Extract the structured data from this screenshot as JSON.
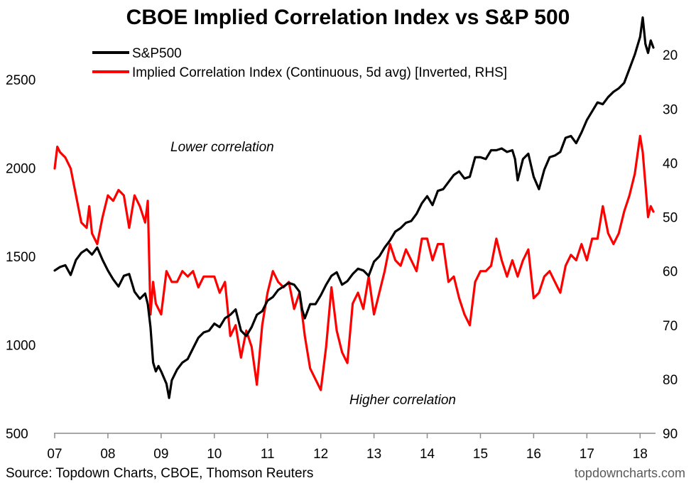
{
  "chart_data": {
    "type": "line",
    "title": "CBOE Implied Correlation Index vs S&P 500",
    "source": "Source: Topdown Charts, CBOE, Thomson Reuters",
    "brand": "topdowncharts.com",
    "annotations": {
      "top": "Lower correlation",
      "bottom": "Higher correlation"
    },
    "x_ticks": [
      "07",
      "08",
      "09",
      "10",
      "11",
      "12",
      "13",
      "14",
      "15",
      "16",
      "17",
      "18"
    ],
    "x_range": [
      2007.0,
      2018.25
    ],
    "y_left": {
      "ticks": [
        500,
        1000,
        1500,
        2000,
        2500
      ],
      "range": [
        500,
        2700
      ]
    },
    "y_right": {
      "ticks": [
        20,
        30,
        40,
        50,
        60,
        70,
        80,
        90
      ],
      "range": [
        18,
        90
      ],
      "inverted": true
    },
    "grid": false,
    "legend_position": "top-left",
    "series": [
      {
        "name": "S&P500",
        "axis": "left",
        "color": "#000000",
        "x": [
          2007.0,
          2007.1,
          2007.2,
          2007.3,
          2007.4,
          2007.5,
          2007.6,
          2007.7,
          2007.8,
          2007.9,
          2008.0,
          2008.1,
          2008.2,
          2008.3,
          2008.4,
          2008.5,
          2008.6,
          2008.7,
          2008.75,
          2008.8,
          2008.85,
          2008.9,
          2008.95,
          2009.0,
          2009.1,
          2009.15,
          2009.2,
          2009.3,
          2009.4,
          2009.5,
          2009.6,
          2009.7,
          2009.8,
          2009.9,
          2010.0,
          2010.1,
          2010.2,
          2010.3,
          2010.4,
          2010.5,
          2010.6,
          2010.7,
          2010.8,
          2010.9,
          2011.0,
          2011.1,
          2011.2,
          2011.3,
          2011.4,
          2011.5,
          2011.6,
          2011.65,
          2011.7,
          2011.8,
          2011.9,
          2012.0,
          2012.1,
          2012.2,
          2012.3,
          2012.4,
          2012.5,
          2012.6,
          2012.7,
          2012.8,
          2012.9,
          2013.0,
          2013.1,
          2013.2,
          2013.3,
          2013.4,
          2013.5,
          2013.6,
          2013.7,
          2013.8,
          2013.9,
          2014.0,
          2014.1,
          2014.2,
          2014.3,
          2014.4,
          2014.5,
          2014.6,
          2014.7,
          2014.8,
          2014.9,
          2015.0,
          2015.1,
          2015.2,
          2015.3,
          2015.4,
          2015.5,
          2015.6,
          2015.65,
          2015.7,
          2015.8,
          2015.9,
          2016.0,
          2016.1,
          2016.2,
          2016.3,
          2016.4,
          2016.5,
          2016.6,
          2016.7,
          2016.8,
          2016.9,
          2017.0,
          2017.1,
          2017.2,
          2017.3,
          2017.4,
          2017.5,
          2017.6,
          2017.7,
          2017.8,
          2017.9,
          2018.0,
          2018.05,
          2018.1,
          2018.15,
          2018.2,
          2018.25
        ],
        "values": [
          1420,
          1440,
          1450,
          1395,
          1480,
          1520,
          1540,
          1510,
          1550,
          1480,
          1420,
          1370,
          1330,
          1390,
          1400,
          1300,
          1260,
          1290,
          1230,
          1100,
          900,
          850,
          880,
          850,
          780,
          700,
          800,
          860,
          900,
          920,
          980,
          1040,
          1070,
          1080,
          1120,
          1100,
          1150,
          1170,
          1200,
          1080,
          1050,
          1100,
          1170,
          1190,
          1250,
          1270,
          1310,
          1330,
          1350,
          1340,
          1300,
          1200,
          1150,
          1230,
          1230,
          1280,
          1340,
          1390,
          1410,
          1340,
          1360,
          1400,
          1430,
          1420,
          1390,
          1470,
          1500,
          1550,
          1590,
          1640,
          1660,
          1690,
          1700,
          1740,
          1800,
          1840,
          1790,
          1870,
          1880,
          1920,
          1960,
          1980,
          1940,
          1950,
          2060,
          2060,
          2050,
          2100,
          2100,
          2110,
          2090,
          2100,
          2050,
          1930,
          2050,
          2080,
          1950,
          1880,
          1990,
          2060,
          2070,
          2090,
          2170,
          2180,
          2140,
          2200,
          2270,
          2320,
          2370,
          2360,
          2400,
          2430,
          2450,
          2480,
          2560,
          2640,
          2740,
          2850,
          2700,
          2650,
          2720,
          2680
        ]
      },
      {
        "name": "Implied Correlation Index (Continuous, 5d avg) [Inverted, RHS]",
        "axis": "right",
        "color": "#ff0000",
        "x": [
          2007.0,
          2007.05,
          2007.1,
          2007.2,
          2007.3,
          2007.4,
          2007.5,
          2007.6,
          2007.65,
          2007.7,
          2007.8,
          2007.9,
          2008.0,
          2008.1,
          2008.2,
          2008.3,
          2008.4,
          2008.5,
          2008.6,
          2008.7,
          2008.75,
          2008.8,
          2008.85,
          2008.9,
          2009.0,
          2009.1,
          2009.2,
          2009.3,
          2009.4,
          2009.5,
          2009.6,
          2009.7,
          2009.8,
          2009.9,
          2010.0,
          2010.1,
          2010.2,
          2010.3,
          2010.4,
          2010.5,
          2010.6,
          2010.7,
          2010.8,
          2010.9,
          2011.0,
          2011.1,
          2011.2,
          2011.3,
          2011.4,
          2011.5,
          2011.6,
          2011.7,
          2011.8,
          2011.9,
          2012.0,
          2012.1,
          2012.2,
          2012.3,
          2012.4,
          2012.5,
          2012.6,
          2012.7,
          2012.8,
          2012.9,
          2013.0,
          2013.1,
          2013.2,
          2013.3,
          2013.4,
          2013.5,
          2013.6,
          2013.7,
          2013.8,
          2013.9,
          2014.0,
          2014.1,
          2014.2,
          2014.3,
          2014.4,
          2014.5,
          2014.6,
          2014.7,
          2014.8,
          2014.9,
          2015.0,
          2015.1,
          2015.2,
          2015.3,
          2015.4,
          2015.5,
          2015.6,
          2015.7,
          2015.8,
          2015.9,
          2016.0,
          2016.1,
          2016.2,
          2016.3,
          2016.4,
          2016.5,
          2016.6,
          2016.7,
          2016.8,
          2016.9,
          2017.0,
          2017.1,
          2017.2,
          2017.3,
          2017.4,
          2017.5,
          2017.6,
          2017.7,
          2017.8,
          2017.9,
          2018.0,
          2018.05,
          2018.1,
          2018.15,
          2018.2,
          2018.25
        ],
        "values": [
          41,
          37,
          38,
          39,
          41,
          46,
          51,
          52,
          48,
          53,
          55,
          50,
          46,
          47,
          45,
          46,
          52,
          46,
          48,
          51,
          47,
          68,
          62,
          66,
          68,
          60,
          62,
          62,
          60,
          61,
          60,
          63,
          61,
          61,
          61,
          64,
          62,
          72,
          70,
          76,
          71,
          74,
          81,
          70,
          64,
          60,
          62,
          63,
          62,
          67,
          64,
          72,
          78,
          80,
          82,
          74,
          63,
          71,
          75,
          77,
          66,
          64,
          67,
          61,
          68,
          64,
          60,
          55,
          58,
          59,
          56,
          58,
          60,
          54,
          54,
          58,
          55,
          55,
          62,
          61,
          65,
          68,
          70,
          62,
          60,
          60,
          59,
          54,
          58,
          61,
          58,
          61,
          58,
          56,
          65,
          64,
          61,
          60,
          62,
          64,
          59,
          57,
          58,
          55,
          58,
          54,
          54,
          48,
          53,
          55,
          53,
          49,
          46,
          42,
          35,
          38,
          44,
          50,
          48,
          49
        ]
      }
    ]
  }
}
